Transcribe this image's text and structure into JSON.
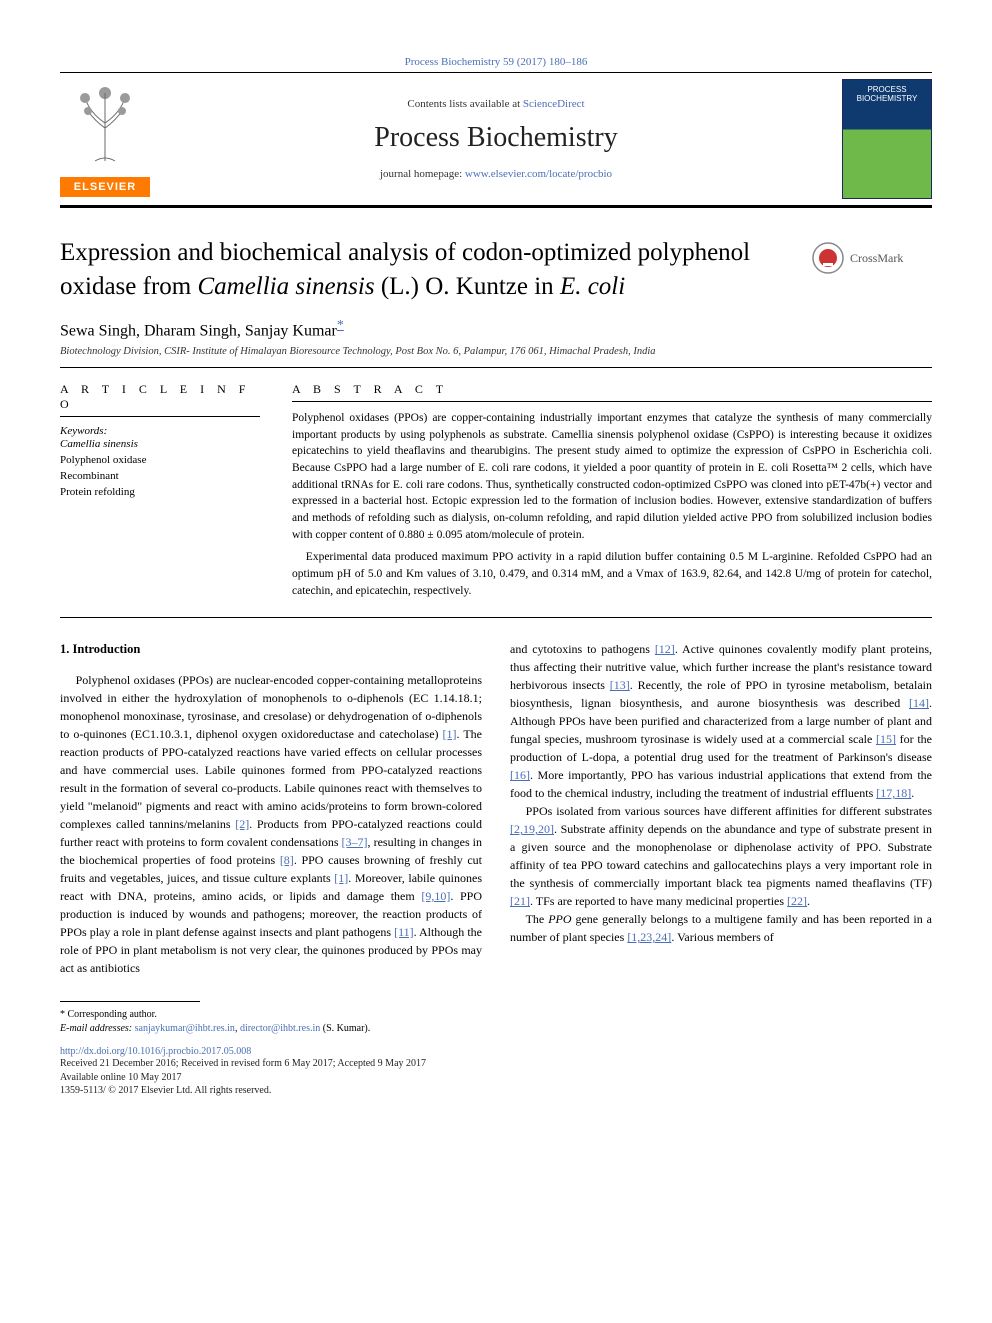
{
  "top_link": "Process Biochemistry 59 (2017) 180–186",
  "masthead": {
    "elsevier_label": "ELSEVIER",
    "contents_prefix": "Contents lists available at ",
    "contents_link_text": "ScienceDirect",
    "journal_name": "Process Biochemistry",
    "homepage_prefix": "journal homepage: ",
    "homepage_link_text": "www.elsevier.com/locate/procbio",
    "cover_title": "PROCESS BIOCHEMISTRY"
  },
  "article": {
    "title_pre": "Expression and biochemical analysis of codon-optimized polyphenol oxidase from ",
    "title_ital1": "Camellia sinensis",
    "title_mid": " (L.) O. Kuntze in ",
    "title_ital2": "E. coli",
    "crossmark_label": "CrossMark",
    "authors": "Sewa Singh, Dharam Singh, Sanjay Kumar",
    "corr_marker": "*",
    "affiliation": "Biotechnology Division, CSIR- Institute of Himalayan Bioresource Technology, Post Box No. 6, Palampur, 176 061, Himachal Pradesh, India"
  },
  "info": {
    "section_label": "A R T I C L E  I N F O",
    "kw_label": "Keywords:",
    "keywords": [
      "Camellia sinensis",
      "Polyphenol oxidase",
      "Recombinant",
      "Protein refolding"
    ],
    "keywords_italic_flags": [
      true,
      false,
      false,
      false
    ]
  },
  "abstract": {
    "section_label": "A B S T R A C T",
    "p1": "Polyphenol oxidases (PPOs) are copper-containing industrially important enzymes that catalyze the synthesis of many commercially important products by using polyphenols as substrate. Camellia sinensis polyphenol oxidase (CsPPO) is interesting because it oxidizes epicatechins to yield theaflavins and thearubigins. The present study aimed to optimize the expression of CsPPO in Escherichia coli. Because CsPPO had a large number of E. coli rare codons, it yielded a poor quantity of protein in E. coli Rosetta™ 2 cells, which have additional tRNAs for E. coli rare codons. Thus, synthetically constructed codon-optimized CsPPO was cloned into pET-47b(+) vector and expressed in a bacterial host. Ectopic expression led to the formation of inclusion bodies. However, extensive standardization of buffers and methods of refolding such as dialysis, on-column refolding, and rapid dilution yielded active PPO from solubilized inclusion bodies with copper content of 0.880 ± 0.095 atom/molecule of protein.",
    "p2": "Experimental data produced maximum PPO activity in a rapid dilution buffer containing 0.5 M L-arginine. Refolded CsPPO had an optimum pH of 5.0 and Km values of 3.10, 0.479, and 0.314 mM, and a Vmax of 163.9, 82.64, and 142.8 U/mg of protein for catechol, catechin, and epicatechin, respectively."
  },
  "body": {
    "heading": "1. Introduction",
    "col1_p1_a": "Polyphenol oxidases (PPOs) are nuclear-encoded copper-containing metalloproteins involved in either the hydroxylation of monophenols to o-diphenols (EC 1.14.18.1; monophenol monoxinase, tyrosinase, and cresolase) or dehydrogenation of o-diphenols to o-quinones (EC1.10.3.1, diphenol oxygen oxidoreductase and catecholase) ",
    "ref1": "[1]",
    "col1_p1_b": ". The reaction products of PPO-catalyzed reactions have varied effects on cellular processes and have commercial uses. Labile quinones formed from PPO-catalyzed reactions result in the formation of several co-products. Labile quinones react with themselves to yield \"melanoid\" pigments and react with amino acids/proteins to form brown-colored complexes called tannins/melanins ",
    "ref2": "[2]",
    "col1_p1_c": ". Products from PPO-catalyzed reactions could further react with proteins to form covalent condensations ",
    "ref3_7": "[3–7]",
    "col1_p1_d": ", resulting in changes in the biochemical properties of food proteins ",
    "ref8": "[8]",
    "col1_p1_e": ". PPO causes browning of freshly cut fruits and vegetables, juices, and tissue culture explants ",
    "ref1b": "[1]",
    "col1_p1_f": ". Moreover, labile quinones react with DNA, proteins, amino acids, or lipids and damage them ",
    "ref9_10": "[9,10]",
    "col1_p1_g": ". PPO production is induced by wounds and pathogens; moreover, the reaction products of PPOs play a role in plant defense against insects and plant pathogens ",
    "ref11": "[11]",
    "col1_p1_h": ". Although the role of PPO in plant metabolism is not very clear, the quinones produced by PPOs may act as antibiotics",
    "col2_p1_a": "and cytotoxins to pathogens ",
    "ref12": "[12]",
    "col2_p1_b": ". Active quinones covalently modify plant proteins, thus affecting their nutritive value, which further increase the plant's resistance toward herbivorous insects ",
    "ref13": "[13]",
    "col2_p1_c": ". Recently, the role of PPO in tyrosine metabolism, betalain biosynthesis, lignan biosynthesis, and aurone biosynthesis was described ",
    "ref14": "[14]",
    "col2_p1_d": ". Although PPOs have been purified and characterized from a large number of plant and fungal species, mushroom tyrosinase is widely used at a commercial scale ",
    "ref15": "[15]",
    "col2_p1_e": " for the production of L-dopa, a potential drug used for the treatment of Parkinson's disease ",
    "ref16": "[16]",
    "col2_p1_f": ". More importantly, PPO has various industrial applications that extend from the food to the chemical industry, including the treatment of industrial effluents ",
    "ref17_18": "[17,18]",
    "col2_p1_g": ".",
    "col2_p2_a": "PPOs isolated from various sources have different affinities for different substrates ",
    "ref2_19_20": "[2,19,20]",
    "col2_p2_b": ". Substrate affinity depends on the abundance and type of substrate present in a given source and the monophenolase or diphenolase activity of PPO. Substrate affinity of tea PPO toward catechins and gallocatechins plays a very important role in the synthesis of commercially important black tea pigments named theaflavins (TF) ",
    "ref21": "[21]",
    "col2_p2_c": ". TFs are reported to have many medicinal properties ",
    "ref22": "[22]",
    "col2_p2_d": ".",
    "col2_p3_a": "The ",
    "col2_p3_ital": "PPO",
    "col2_p3_b": " gene generally belongs to a multigene family and has been reported in a number of plant species ",
    "ref1_23_24": "[1,23,24]",
    "col2_p3_c": ". Various members of"
  },
  "footer": {
    "corr_label": "* Corresponding author.",
    "email_label": "E-mail addresses: ",
    "email1": "sanjaykumar@ihbt.res.in",
    "email_sep": ", ",
    "email2": "director@ihbt.res.in",
    "email_suffix": " (S. Kumar).",
    "doi": "http://dx.doi.org/10.1016/j.procbio.2017.05.008",
    "history": "Received 21 December 2016; Received in revised form 6 May 2017; Accepted 9 May 2017",
    "online": "Available online 10 May 2017",
    "copyright": "1359-5113/ © 2017 Elsevier Ltd. All rights reserved."
  },
  "colors": {
    "link": "#4a6fb8",
    "elsevier_orange": "#ff7a00",
    "cover_blue": "#0e3a70",
    "cover_green": "#6fb84a",
    "rule": "#000000",
    "text": "#000000"
  },
  "typography": {
    "journal_name_fontsize": 28,
    "article_title_fontsize": 25,
    "authors_fontsize": 16,
    "body_fontsize": 12,
    "abstract_fontsize": 11.5,
    "footnote_fontsize": 10
  }
}
